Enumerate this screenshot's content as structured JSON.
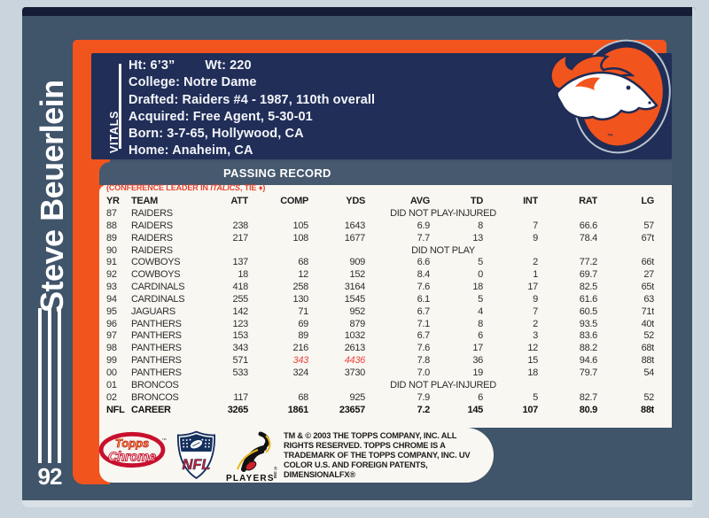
{
  "card": {
    "player_name": "Steve Beuerlein",
    "card_number": "92",
    "vitals": {
      "label": "VITALS",
      "height": "Ht: 6’3”",
      "weight": "Wt: 220",
      "lines": [
        "College: Notre Dame",
        "Drafted: Raiders #4 - 1987, 110th overall",
        "Acquired: Free Agent, 5-30-01",
        "Born: 3-7-65, Hollywood, CA",
        "Home: Anaheim, CA"
      ]
    },
    "team_logo": "denver-broncos",
    "logo_tm": "™",
    "passing_record": {
      "title": "PASSING RECORD",
      "note_prefix": "(CONFERENCE LEADER IN ",
      "note_italic": "ITALICS",
      "note_suffix": ", TIE ♦)",
      "columns": [
        "YR",
        "TEAM",
        "ATT",
        "COMP",
        "YDS",
        "AVG",
        "TD",
        "INT",
        "RAT",
        "LG"
      ],
      "rows": [
        {
          "yr": "87",
          "team": "RAIDERS",
          "note": "DID NOT PLAY-INJURED"
        },
        {
          "yr": "88",
          "team": "RAIDERS",
          "att": "238",
          "comp": "105",
          "yds": "1643",
          "avg": "6.9",
          "td": "8",
          "int": "7",
          "rat": "66.6",
          "lg": "57"
        },
        {
          "yr": "89",
          "team": "RAIDERS",
          "att": "217",
          "comp": "108",
          "yds": "1677",
          "avg": "7.7",
          "td": "13",
          "int": "9",
          "rat": "78.4",
          "lg": "67t"
        },
        {
          "yr": "90",
          "team": "RAIDERS",
          "note": "DID NOT PLAY"
        },
        {
          "yr": "91",
          "team": "COWBOYS",
          "att": "137",
          "comp": "68",
          "yds": "909",
          "avg": "6.6",
          "td": "5",
          "int": "2",
          "rat": "77.2",
          "lg": "66t"
        },
        {
          "yr": "92",
          "team": "COWBOYS",
          "att": "18",
          "comp": "12",
          "yds": "152",
          "avg": "8.4",
          "td": "0",
          "int": "1",
          "rat": "69.7",
          "lg": "27"
        },
        {
          "yr": "93",
          "team": "CARDINALS",
          "att": "418",
          "comp": "258",
          "yds": "3164",
          "avg": "7.6",
          "td": "18",
          "int": "17",
          "rat": "82.5",
          "lg": "65t"
        },
        {
          "yr": "94",
          "team": "CARDINALS",
          "att": "255",
          "comp": "130",
          "yds": "1545",
          "avg": "6.1",
          "td": "5",
          "int": "9",
          "rat": "61.6",
          "lg": "63"
        },
        {
          "yr": "95",
          "team": "JAGUARS",
          "att": "142",
          "comp": "71",
          "yds": "952",
          "avg": "6.7",
          "td": "4",
          "int": "7",
          "rat": "60.5",
          "lg": "71t"
        },
        {
          "yr": "96",
          "team": "PANTHERS",
          "att": "123",
          "comp": "69",
          "yds": "879",
          "avg": "7.1",
          "td": "8",
          "int": "2",
          "rat": "93.5",
          "lg": "40t"
        },
        {
          "yr": "97",
          "team": "PANTHERS",
          "att": "153",
          "comp": "89",
          "yds": "1032",
          "avg": "6.7",
          "td": "6",
          "int": "3",
          "rat": "83.6",
          "lg": "52"
        },
        {
          "yr": "98",
          "team": "PANTHERS",
          "att": "343",
          "comp": "216",
          "yds": "2613",
          "avg": "7.6",
          "td": "17",
          "int": "12",
          "rat": "88.2",
          "lg": "68t"
        },
        {
          "yr": "99",
          "team": "PANTHERS",
          "att": "571",
          "comp": "343",
          "yds": "4436",
          "avg": "7.8",
          "td": "36",
          "int": "15",
          "rat": "94.6",
          "lg": "88t",
          "leader": [
            "comp",
            "yds"
          ]
        },
        {
          "yr": "00",
          "team": "PANTHERS",
          "att": "533",
          "comp": "324",
          "yds": "3730",
          "avg": "7.0",
          "td": "19",
          "int": "18",
          "rat": "79.7",
          "lg": "54"
        },
        {
          "yr": "01",
          "team": "BRONCOS",
          "note": "DID NOT PLAY-INJURED"
        },
        {
          "yr": "02",
          "team": "BRONCOS",
          "att": "117",
          "comp": "68",
          "yds": "925",
          "avg": "7.9",
          "td": "6",
          "int": "5",
          "rat": "82.7",
          "lg": "52"
        },
        {
          "yr": "NFL",
          "team": "CAREER",
          "att": "3265",
          "comp": "1861",
          "yds": "23657",
          "avg": "7.2",
          "td": "145",
          "int": "107",
          "rat": "80.9",
          "lg": "88t",
          "career": true
        }
      ]
    },
    "footer": {
      "topps_line1": "Topps",
      "topps_line2": "Chrome",
      "topps_tm": "™",
      "nfl": "NFL",
      "players_label": "PLAYERS",
      "players_inc": "INC",
      "players_reg": "®",
      "copyright_lines": [
        "TM & © 2003 THE TOPPS COMPANY, INC. ALL",
        "RIGHTS RESERVED. TOPPS CHROME IS A",
        "TRADEMARK OF THE TOPPS COMPANY, INC. UV",
        "COLOR U.S. AND FOREIGN PATENTS,",
        "DIMENSIONALFX®"
      ]
    },
    "colors": {
      "slate": "#40546a",
      "navy": "#202e58",
      "orange": "#f2541e",
      "panel": "#f9f7f2",
      "accent_red": "#e8432e",
      "background": "#c9d4dc"
    }
  }
}
